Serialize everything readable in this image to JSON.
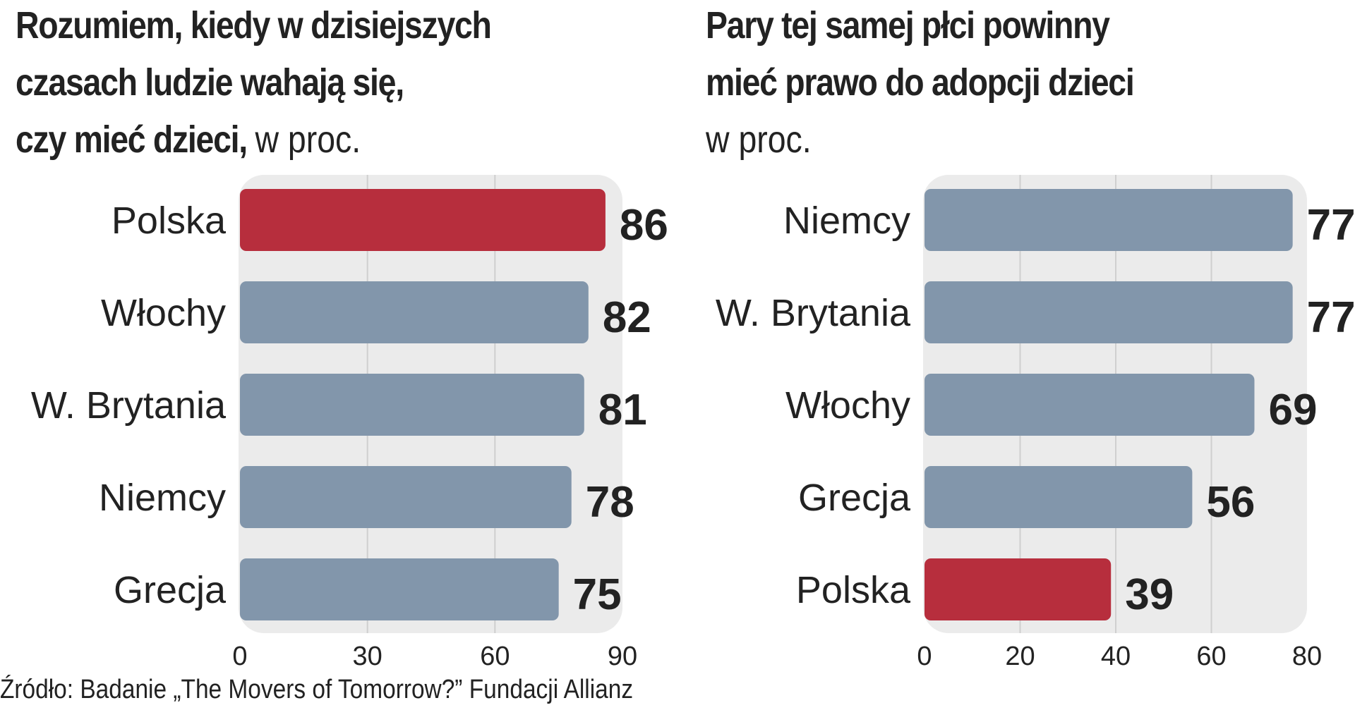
{
  "charts": [
    {
      "title_lines": [
        "Rozumiem, kiedy w dzisiejszych",
        "czasach ludzie wahają się,",
        "czy mieć dzieci,"
      ],
      "unit": "w proc."
    },
    {
      "title_lines": [
        "Pary tej samej płci powinny",
        "mieć prawo do adopcji dzieci"
      ],
      "unit": "w proc."
    }
  ],
  "source": "Źródło: Badanie „The Movers of Tomorrow?” Fundacji Allianz",
  "colors": {
    "highlight": "#b72e3d",
    "bar": "#8296ab",
    "panel": "#ebebeb",
    "grid": "#cfcfcf"
  },
  "chart_data": [
    {
      "type": "bar",
      "orientation": "horizontal",
      "categories": [
        "Polska",
        "Włochy",
        "W. Brytania",
        "Niemcy",
        "Grecja"
      ],
      "values": [
        86,
        82,
        81,
        78,
        75
      ],
      "highlight": "Polska",
      "xlim": [
        0,
        90
      ],
      "xticks": [
        0,
        30,
        60,
        90
      ],
      "grid": true
    },
    {
      "type": "bar",
      "orientation": "horizontal",
      "categories": [
        "Niemcy",
        "W. Brytania",
        "Włochy",
        "Grecja",
        "Polska"
      ],
      "values": [
        77,
        77,
        69,
        56,
        39
      ],
      "highlight": "Polska",
      "xlim": [
        0,
        80
      ],
      "xticks": [
        0,
        20,
        40,
        60,
        80
      ],
      "grid": true
    }
  ]
}
